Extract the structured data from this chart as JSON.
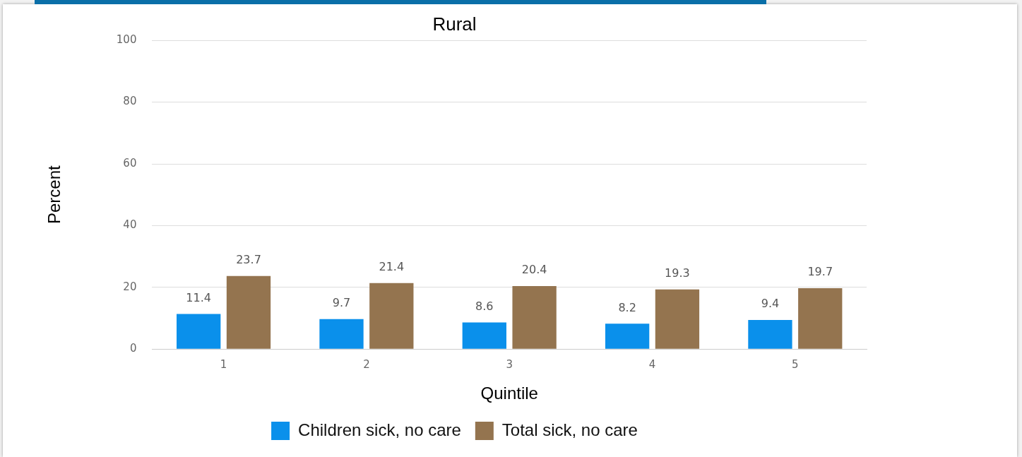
{
  "chart_data": {
    "type": "bar",
    "title": "Rural",
    "xlabel": "Quintile",
    "ylabel": "Percent",
    "categories": [
      "1",
      "2",
      "3",
      "4",
      "5"
    ],
    "series": [
      {
        "name": "Children sick, no care",
        "color": "#0a90eb",
        "values": [
          11.4,
          9.7,
          8.6,
          8.2,
          9.4
        ]
      },
      {
        "name": "Total sick, no care",
        "color": "#94744f",
        "values": [
          23.7,
          21.4,
          20.4,
          19.3,
          19.7
        ]
      }
    ],
    "ylim": [
      0,
      100
    ],
    "yticks": [
      0,
      20,
      40,
      60,
      80,
      100
    ],
    "grid": "y",
    "legend": "bottom",
    "data_labels": true
  }
}
